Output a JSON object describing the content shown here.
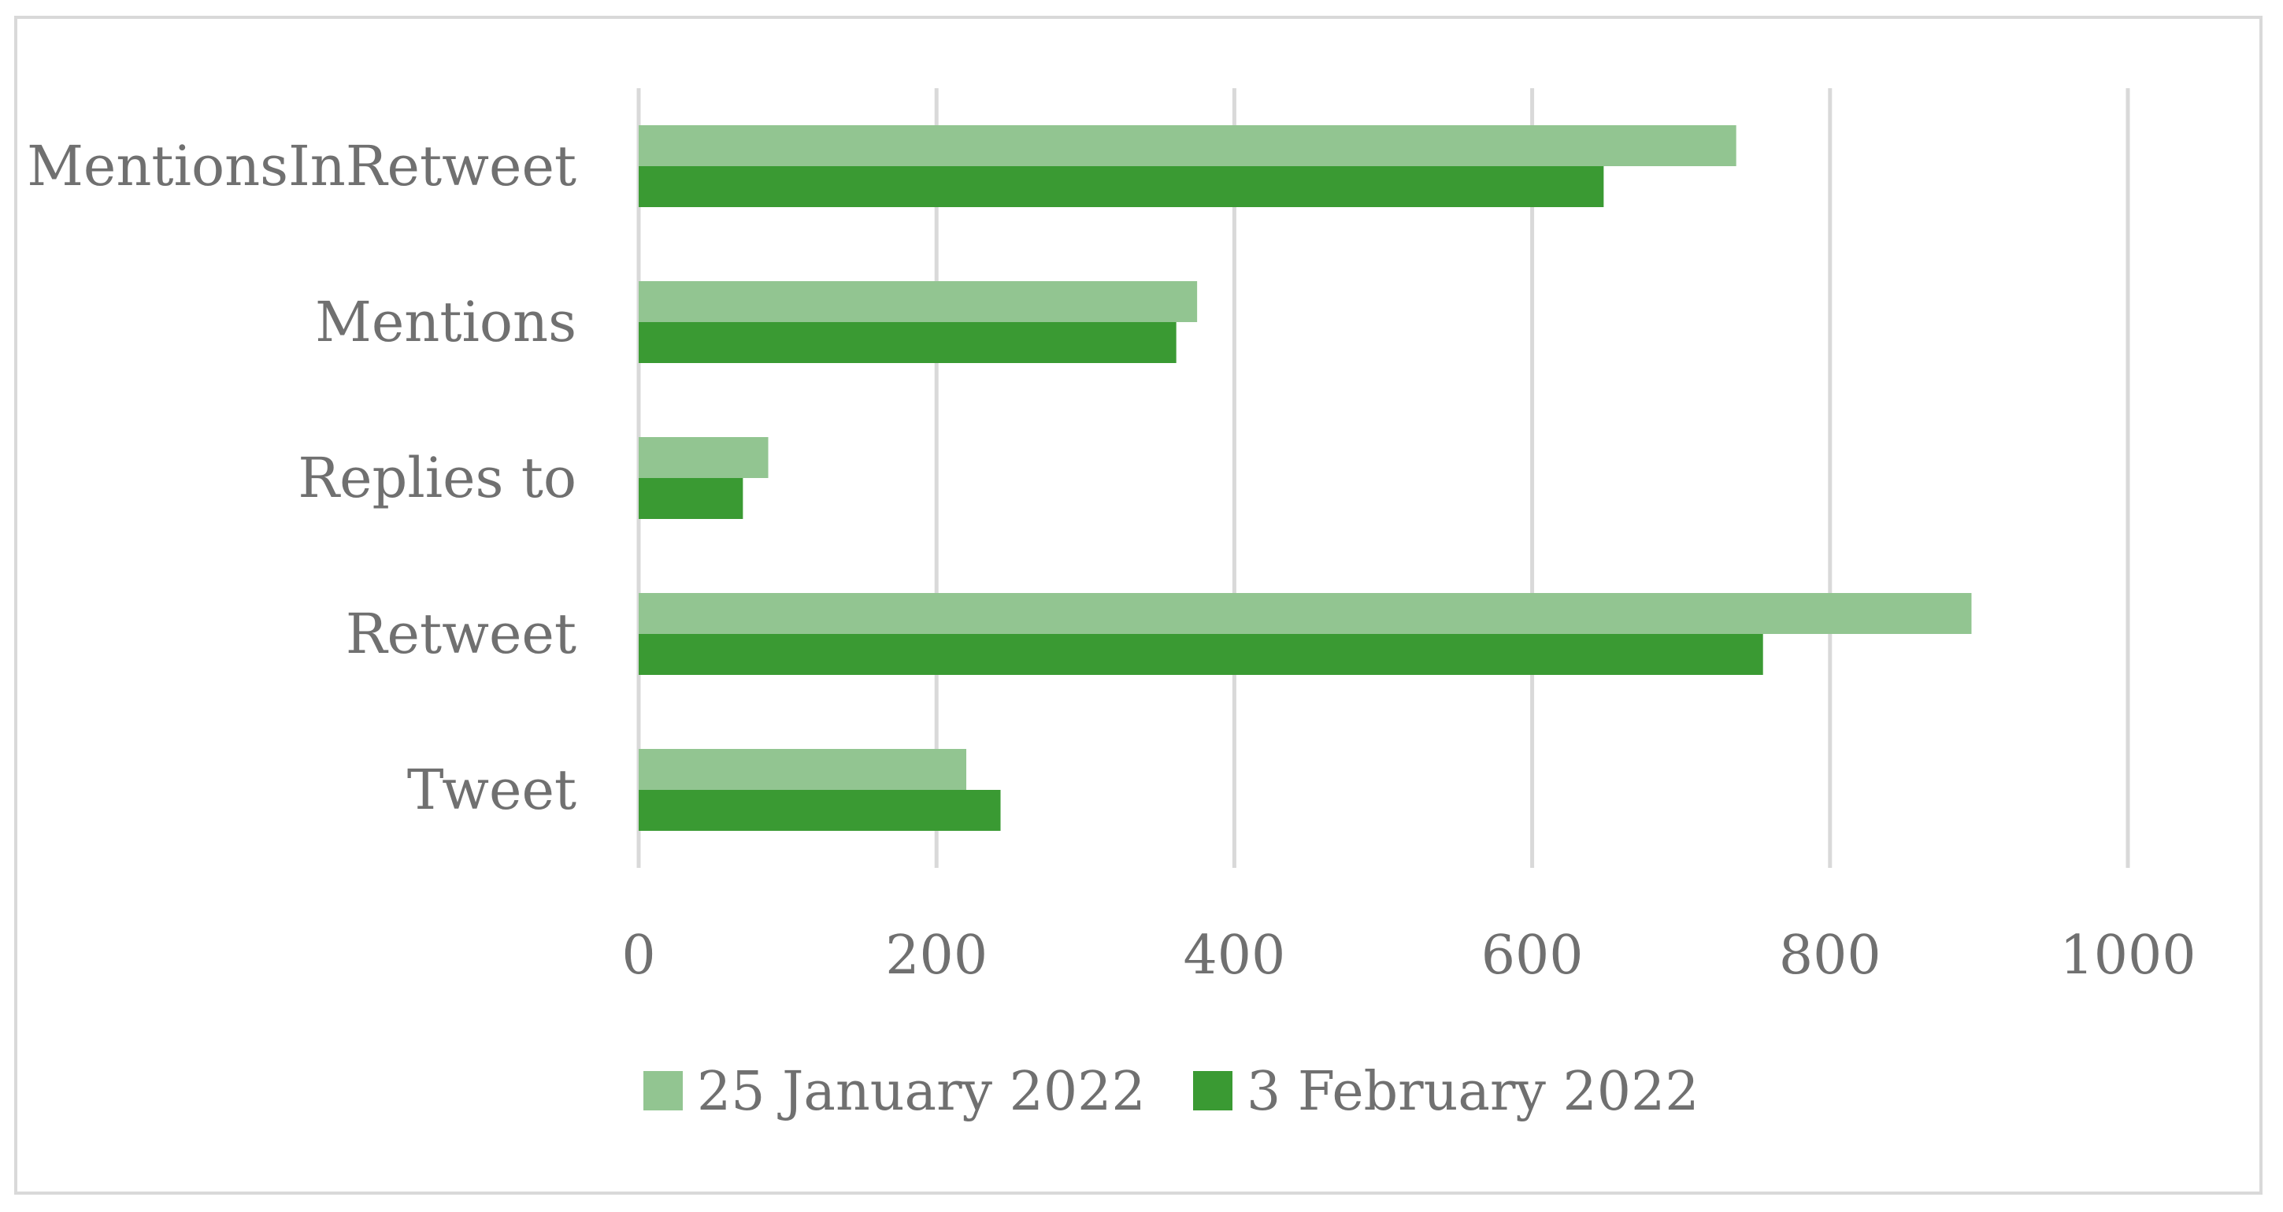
{
  "chart_data": {
    "type": "bar",
    "orientation": "horizontal",
    "categories": [
      "MentionsInRetweet",
      "Mentions",
      "Replies to",
      "Retweet",
      "Tweet"
    ],
    "series": [
      {
        "name": "25 January 2022",
        "color": "#92c591",
        "values": [
          737,
          375,
          87,
          895,
          220
        ]
      },
      {
        "name": "3 February 2022",
        "color": "#3a9a33",
        "values": [
          648,
          361,
          70,
          755,
          243
        ]
      }
    ],
    "xlim": [
      0,
      1000
    ],
    "x_ticks": [
      "0",
      "200",
      "400",
      "600",
      "800",
      "1000"
    ],
    "grid": "vertical",
    "legend_position": "bottom"
  }
}
